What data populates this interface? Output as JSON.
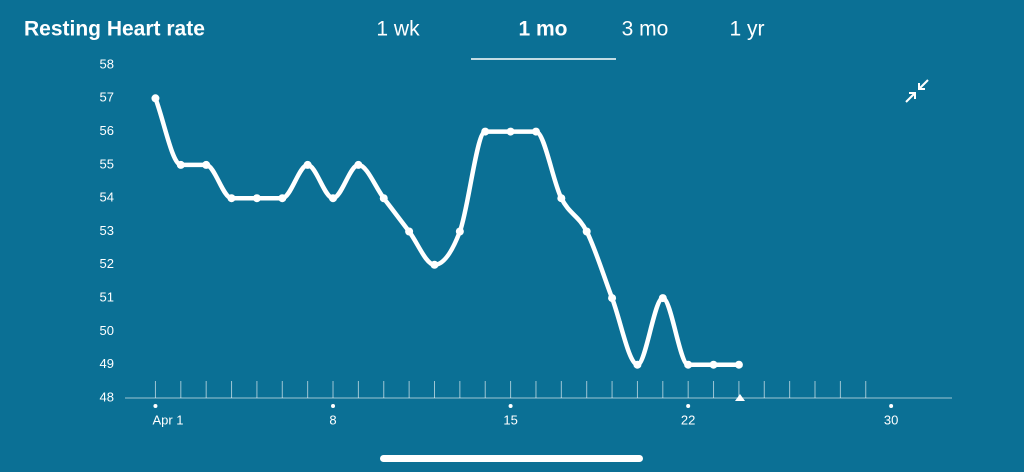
{
  "header": {
    "title": "Resting Heart rate"
  },
  "tabs": {
    "items": [
      "1 wk",
      "1 mo",
      "3 mo",
      "1 yr"
    ],
    "selected": "1 mo"
  },
  "chart_data": {
    "type": "line",
    "x": [
      1,
      2,
      3,
      4,
      5,
      6,
      7,
      8,
      9,
      10,
      11,
      12,
      13,
      14,
      15,
      16,
      17,
      18,
      19,
      20,
      21,
      22,
      23,
      24
    ],
    "series": [
      {
        "name": "Resting Heart rate",
        "color": "#ffffff",
        "values": [
          57,
          55,
          55,
          54,
          54,
          54,
          55,
          54,
          55,
          54,
          53,
          52,
          53,
          56,
          56,
          56,
          54,
          53,
          51,
          49,
          51,
          49,
          49,
          49
        ]
      }
    ],
    "xlim": [
      -0.2,
      32.4
    ],
    "xticks": [
      {
        "value": 1,
        "label": "Apr 1"
      },
      8,
      15,
      22,
      30
    ],
    "minor_xticks": [
      1,
      2,
      3,
      4,
      5,
      6,
      7,
      8,
      9,
      10,
      11,
      12,
      13,
      14,
      15,
      16,
      17,
      18,
      19,
      20,
      21,
      22,
      23,
      24,
      25,
      26,
      27,
      28,
      29
    ],
    "ylim": [
      48,
      58
    ],
    "yticks": [
      48,
      49,
      50,
      51,
      52,
      53,
      54,
      55,
      56,
      57,
      58
    ]
  }
}
